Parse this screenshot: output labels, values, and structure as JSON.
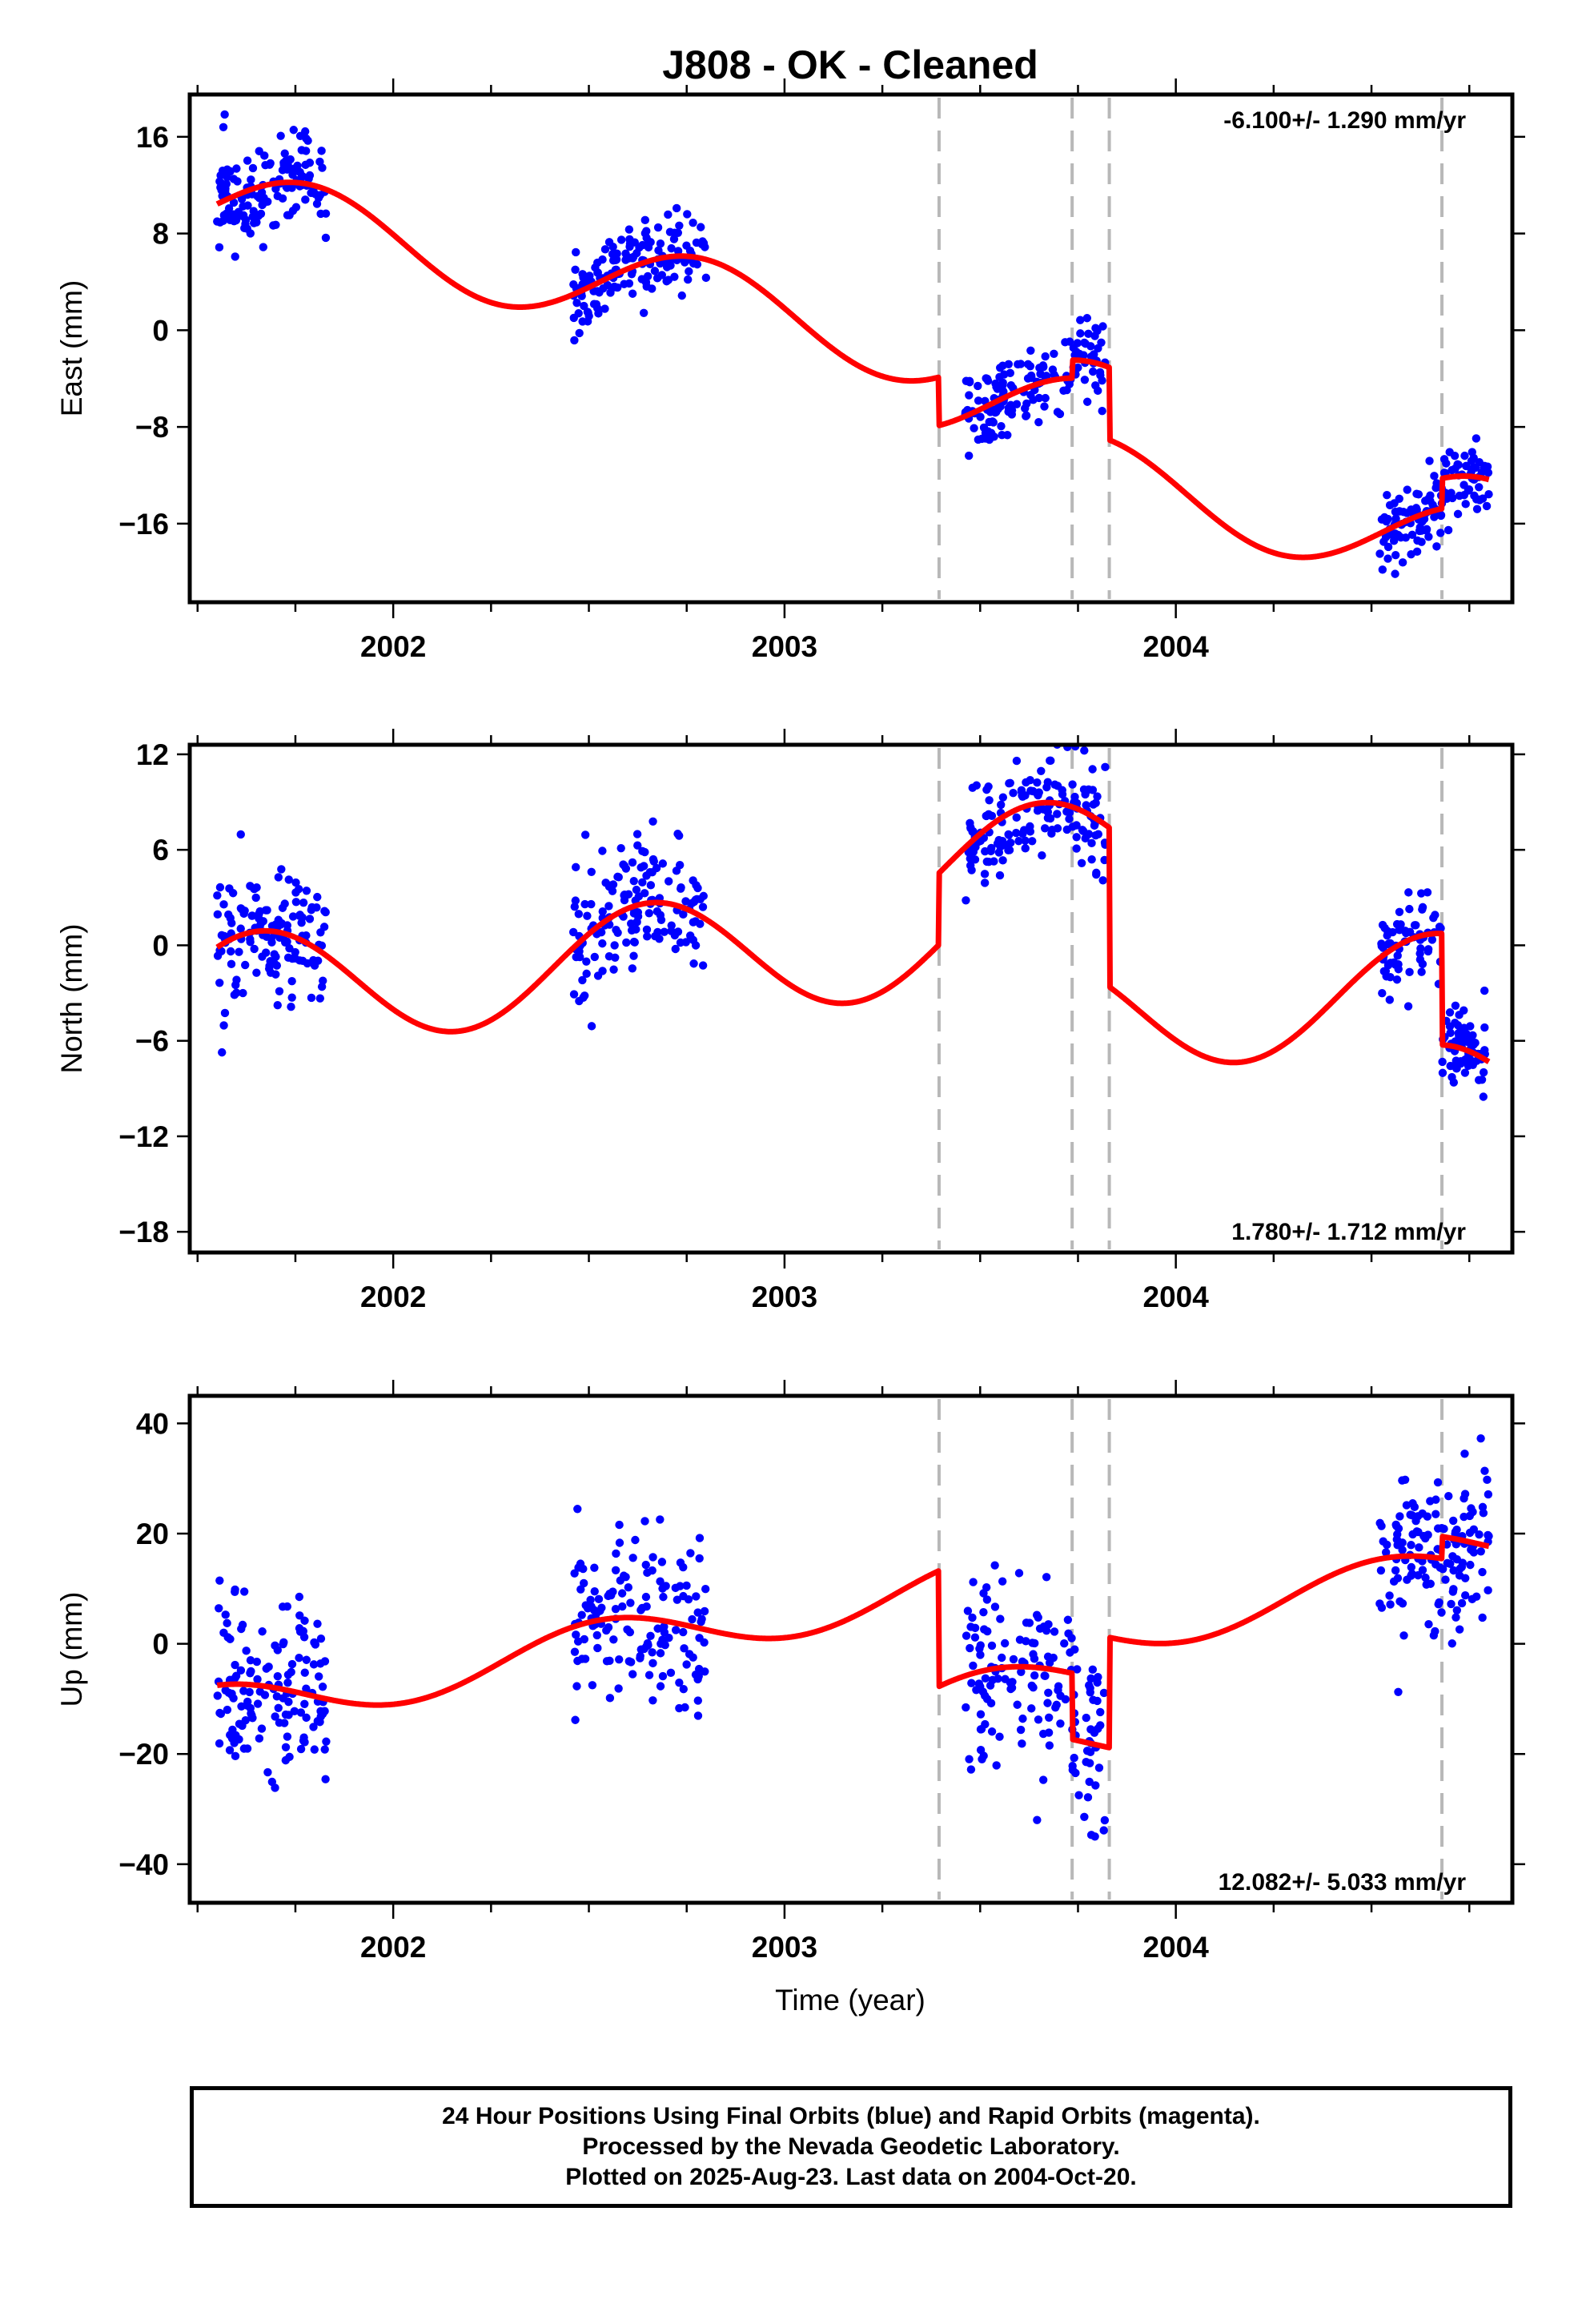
{
  "title": "J808  - OK - Cleaned",
  "xlabel": "Time (year)",
  "footer": {
    "line1": "24 Hour Positions Using Final Orbits (blue) and Rapid Orbits (magenta).",
    "line2": "Processed by the Nevada Geodetic Laboratory.",
    "line3": "Plotted on 2025-Aug-23. Last data on 2004-Oct-20."
  },
  "colors": {
    "data": "#0000ff",
    "model": "#ff0000",
    "offsets": "#b8b8b8"
  },
  "chart_data": [
    {
      "type": "scatter",
      "component": "East",
      "ylabel": "East (mm)",
      "rate_label": "-6.100+/- 1.290 mm/yr",
      "rate_position": "top-right",
      "xlim": [
        2001.48,
        2004.86
      ],
      "ylim": [
        -22.5,
        19.5
      ],
      "xticks": [
        2002,
        2003,
        2004
      ],
      "yticks": [
        16,
        8,
        0,
        -8,
        -16
      ],
      "offsets": [
        2003.395,
        2003.735,
        2003.83,
        2004.68
      ],
      "model": {
        "rate_mm_per_yr": -6.1,
        "ref_year": 2001.55,
        "intercept": 10.0,
        "annual": 3.5,
        "annual_phase_yr": 0.78,
        "semiannual": 0.0,
        "semiannual_phase_yr": 0.0,
        "jumps": [
          [
            2003.395,
            -4.0
          ],
          [
            2003.735,
            1.5
          ],
          [
            2003.83,
            -6.0
          ],
          [
            2004.68,
            2.5
          ]
        ],
        "t_start": 2001.55,
        "t_end": 2004.8
      },
      "data_windows": [
        {
          "start": 2001.55,
          "end": 2001.83,
          "n": 140,
          "scatter": 2.0,
          "seed": 11
        },
        {
          "start": 2002.46,
          "end": 2002.8,
          "n": 150,
          "scatter": 1.8,
          "seed": 12
        },
        {
          "start": 2003.46,
          "end": 2003.82,
          "n": 160,
          "scatter": 1.6,
          "seed": 13
        },
        {
          "start": 2004.52,
          "end": 2004.8,
          "n": 140,
          "scatter": 1.5,
          "seed": 14
        }
      ]
    },
    {
      "type": "scatter",
      "component": "North",
      "ylabel": "North (mm)",
      "rate_label": "1.780+/- 1.712 mm/yr",
      "rate_position": "bottom-right",
      "xlim": [
        2001.48,
        2004.86
      ],
      "ylim": [
        -19.3,
        12.6
      ],
      "xticks": [
        2002,
        2003,
        2004
      ],
      "yticks": [
        12,
        6,
        0,
        -6,
        -12,
        -18
      ],
      "offsets": [
        2003.395,
        2003.735,
        2003.83,
        2004.68
      ],
      "model": {
        "rate_mm_per_yr": 1.78,
        "ref_year": 2001.55,
        "intercept": -2.9,
        "annual": 3.6,
        "annual_phase_yr": 0.66,
        "semiannual": 0.0,
        "semiannual_phase_yr": 0.0,
        "jumps": [
          [
            2003.395,
            4.5
          ],
          [
            2003.83,
            -10.0
          ],
          [
            2004.68,
            -7.0
          ]
        ],
        "t_start": 2001.55,
        "t_end": 2004.8
      },
      "data_windows": [
        {
          "start": 2001.55,
          "end": 2001.83,
          "n": 140,
          "scatter": 2.2,
          "seed": 21
        },
        {
          "start": 2002.46,
          "end": 2002.8,
          "n": 150,
          "scatter": 2.0,
          "seed": 22
        },
        {
          "start": 2003.46,
          "end": 2003.82,
          "n": 160,
          "scatter": 1.6,
          "seed": 23
        },
        {
          "start": 2004.52,
          "end": 2004.8,
          "n": 140,
          "scatter": 1.4,
          "seed": 24
        }
      ]
    },
    {
      "type": "scatter",
      "component": "Up",
      "ylabel": "Up (mm)",
      "rate_label": "12.082+/- 5.033 mm/yr",
      "rate_position": "bottom-right",
      "xlim": [
        2001.48,
        2004.86
      ],
      "ylim": [
        -47,
        45
      ],
      "xticks": [
        2002,
        2003,
        2004
      ],
      "yticks": [
        40,
        20,
        0,
        -20,
        -40
      ],
      "offsets": [
        2003.395,
        2003.735,
        2003.83,
        2004.68
      ],
      "model": {
        "rate_mm_per_yr": 12.082,
        "ref_year": 2001.55,
        "intercept": -12.0,
        "annual": 4.5,
        "annual_phase_yr": 0.53,
        "semiannual": 0.0,
        "semiannual_phase_yr": 0.0,
        "jumps": [
          [
            2003.395,
            -21.0
          ],
          [
            2003.735,
            -12.0
          ],
          [
            2003.83,
            20.0
          ],
          [
            2004.68,
            4.0
          ]
        ],
        "t_start": 2001.55,
        "t_end": 2004.8
      },
      "data_windows": [
        {
          "start": 2001.55,
          "end": 2001.83,
          "n": 140,
          "scatter": 8.0,
          "seed": 31
        },
        {
          "start": 2002.46,
          "end": 2002.8,
          "n": 150,
          "scatter": 9.0,
          "seed": 32
        },
        {
          "start": 2003.46,
          "end": 2003.82,
          "n": 160,
          "scatter": 9.0,
          "seed": 33
        },
        {
          "start": 2004.52,
          "end": 2004.8,
          "n": 140,
          "scatter": 8.0,
          "seed": 34
        }
      ]
    }
  ]
}
